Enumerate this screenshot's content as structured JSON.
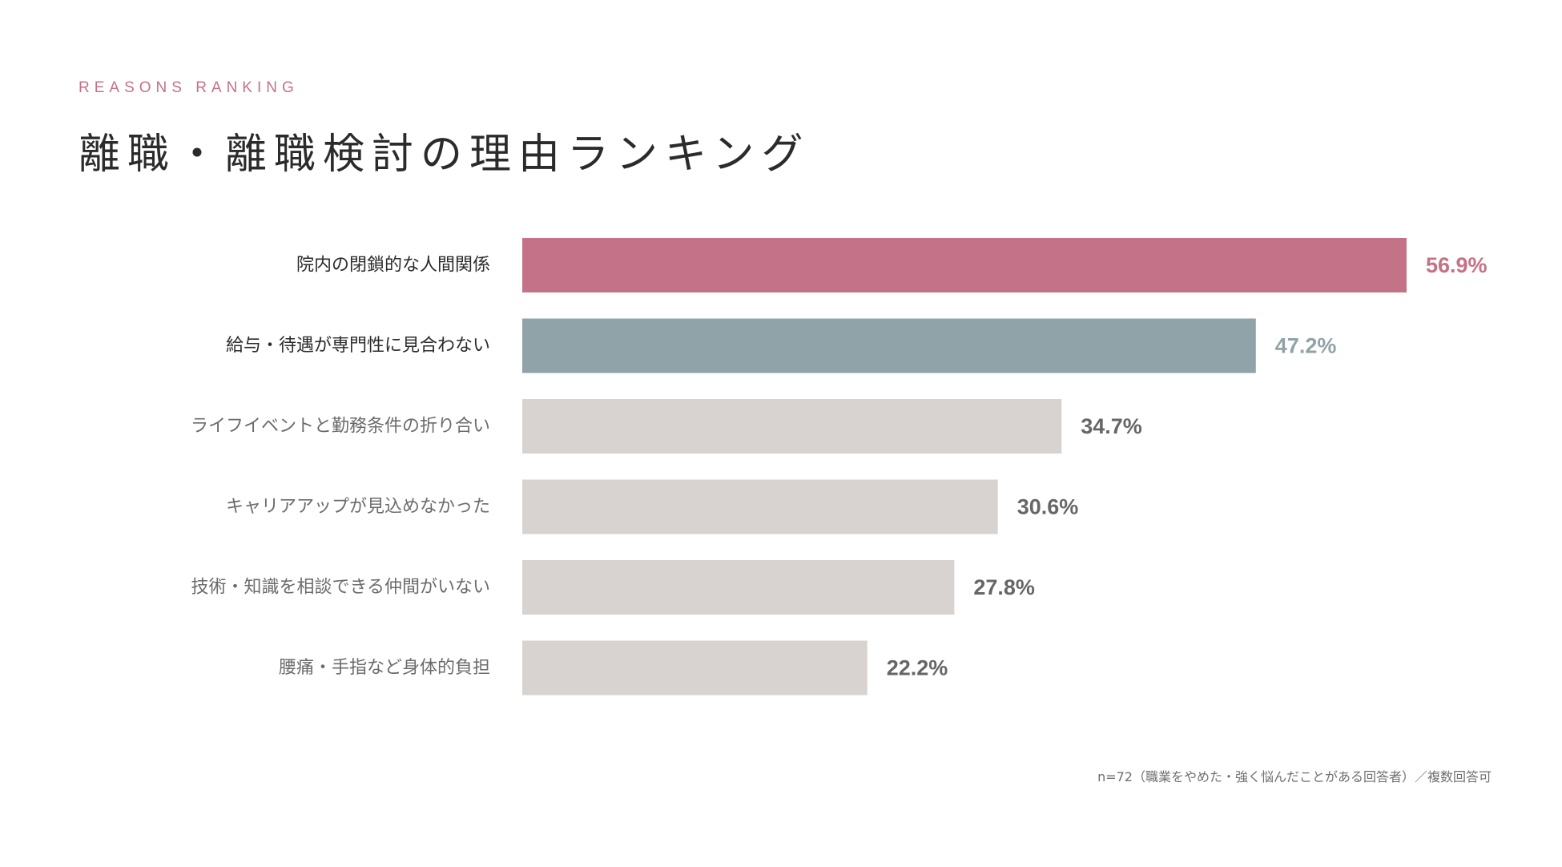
{
  "header": {
    "kicker": "REASONS RANKING",
    "title": "離職・離職検討の理由ランキング"
  },
  "colors": {
    "accent_primary": "#c47287",
    "accent_secondary": "#90a3a8",
    "bar_default": "#d8d3d0",
    "label_strong": "#2b2b2b",
    "label_muted": "#6b6b6b",
    "value_muted": "#666666"
  },
  "chart_data": {
    "type": "bar",
    "orientation": "horizontal",
    "categories": [
      "院内の閉鎖的な人間関係",
      "給与・待遇が専門性に見合わない",
      "ライフイベントと勤務条件の折り合い",
      "キャリアアップが見込めなかった",
      "技術・知識を相談できる仲間がいない",
      "腰痛・手指など身体的負担"
    ],
    "values": [
      56.9,
      47.2,
      34.7,
      30.6,
      27.8,
      22.2
    ],
    "value_labels": [
      "56.9%",
      "47.2%",
      "34.7%",
      "30.6%",
      "27.8%",
      "22.2%"
    ],
    "highlight": [
      "primary",
      "secondary",
      "none",
      "none",
      "none",
      "none"
    ],
    "xlim": [
      0,
      56.9
    ],
    "grid": false,
    "legend": "none"
  },
  "footnote": "n=72（職業をやめた・強く悩んだことがある回答者）／複数回答可"
}
